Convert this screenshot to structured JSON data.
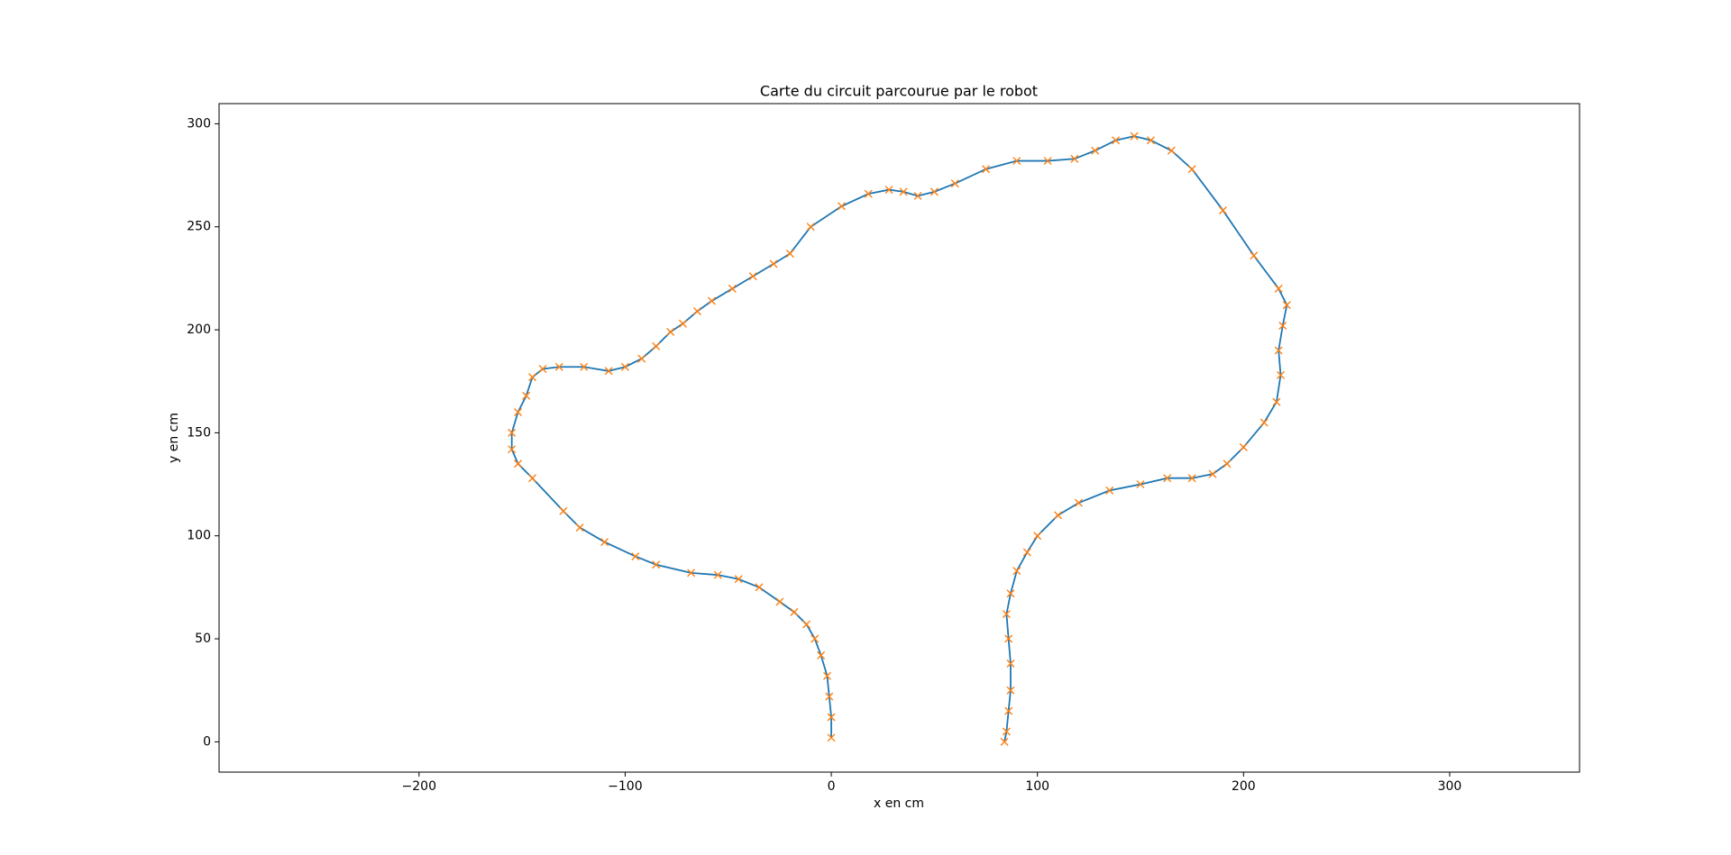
{
  "chart_data": {
    "type": "line",
    "title": "Carte du circuit parcourue par le robot",
    "x_label": "x en cm",
    "y_label": "y en cm",
    "xlim": [
      -297,
      363
    ],
    "ylim": [
      -14.7,
      309.8
    ],
    "xticks": [
      {
        "value": -200,
        "label": "−200"
      },
      {
        "value": -100,
        "label": "−100"
      },
      0,
      100,
      200,
      300
    ],
    "yticks": [
      0,
      50,
      100,
      150,
      200,
      250,
      300
    ],
    "line_color": "#1f77b4",
    "marker_color": "#ff7f0e",
    "marker": "x",
    "x": [
      0,
      0,
      -1,
      -2,
      -5,
      -8,
      -12,
      -18,
      -25,
      -35,
      -45,
      -55,
      -68,
      -85,
      -95,
      -110,
      -122,
      -130,
      -145,
      -152,
      -155,
      -155,
      -152,
      -148,
      -145,
      -140,
      -132,
      -120,
      -108,
      -100,
      -92,
      -85,
      -78,
      -72,
      -65,
      -58,
      -48,
      -38,
      -28,
      -20,
      -10,
      5,
      18,
      28,
      35,
      42,
      50,
      60,
      75,
      90,
      105,
      118,
      128,
      138,
      147,
      155,
      165,
      175,
      190,
      205,
      217,
      221,
      219,
      217,
      218,
      216,
      210,
      200,
      192,
      185,
      175,
      163,
      150,
      135,
      120,
      110,
      100,
      95,
      90,
      87,
      85,
      86,
      87,
      87,
      86,
      85,
      84
    ],
    "y": [
      2,
      12,
      22,
      32,
      42,
      50,
      57,
      63,
      68,
      75,
      79,
      81,
      82,
      86,
      90,
      97,
      104,
      112,
      128,
      135,
      142,
      150,
      160,
      168,
      177,
      181,
      182,
      182,
      180,
      182,
      186,
      192,
      199,
      203,
      209,
      214,
      220,
      226,
      232,
      237,
      250,
      260,
      266,
      268,
      267,
      265,
      267,
      271,
      278,
      282,
      282,
      283,
      287,
      292,
      294,
      292,
      287,
      278,
      258,
      236,
      220,
      212,
      202,
      190,
      178,
      165,
      155,
      143,
      135,
      130,
      128,
      128,
      125,
      122,
      116,
      110,
      100,
      92,
      83,
      72,
      62,
      50,
      38,
      25,
      15,
      5,
      0
    ]
  }
}
